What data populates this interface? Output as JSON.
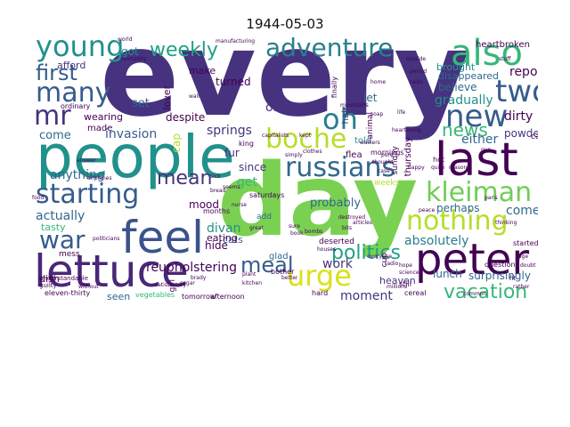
{
  "title": "1944-05-03",
  "words": {
    "every": "every",
    "day": "day",
    "people": "people",
    "lettuce": "lettuce",
    "feel": "feel",
    "peter": "peter",
    "last": "last",
    "also": "also",
    "young": "young",
    "adventure": "adventure",
    "russians": "russians",
    "boche": "boche",
    "kleiman": "kleiman",
    "starting": "starting",
    "nothing": "nothing",
    "new": "new",
    "two": "two",
    "many": "many",
    "first": "first",
    "weekly": "weekly",
    "mr": "mr",
    "oh": "oh",
    "war": "war",
    "urge": "urge",
    "meal": "meal",
    "politics": "politics",
    "vacation": "vacation",
    "news": "news",
    "mean": "mean",
    "anything": "anything",
    "actually": "actually",
    "invasion": "invasion",
    "springs": "springs",
    "office": "office",
    "report": "report",
    "gradually": "gradually",
    "believe": "believe",
    "dirty": "dirty",
    "either": "either",
    "absolutely": "absolutely",
    "comes": "comes",
    "probably": "probably",
    "work": "work",
    "moment": "moment",
    "divan": "divan",
    "reupholstering": "reupholstering",
    "morning": "morning",
    "perhaps": "perhaps",
    "lunch": "lunch",
    "surprisingly": "surprisingly",
    "heaven": "heaven",
    "powder": "powder",
    "heartbroken": "heartbroken",
    "brought": "brought",
    "disappeared": "disappeared",
    "turned": "turned",
    "got": "got",
    "afford": "afford",
    "set": "set",
    "come": "come",
    "cap": "cap",
    "lover": "lover",
    "make": "make",
    "despite": "despite",
    "wearing": "wearing",
    "made": "made",
    "hide": "hide",
    "mood": "mood",
    "get": "get",
    "since": "since",
    "fur": "fur",
    "cats": "cats",
    "eating": "eating",
    "tasty": "tasty",
    "dish": "dish",
    "seen": "seen",
    "vegetables": "vegetables",
    "tomorrow": "tomorrow",
    "afternoon": "afternoon",
    "eleven-thirty": "eleven-thirty",
    "hard": "hard",
    "cereal": "cereal",
    "still": "still",
    "glad": "glad",
    "let": "let",
    "hair": "hair",
    "told": "told",
    "flea": "flea",
    "thursday": "thursday",
    "sunday": "sunday",
    "cup": "cup",
    "ordinary": "ordinary",
    "saturdays": "saturdays",
    "mornings": "mornings",
    "hot": "hot",
    "weeks": "weeks",
    "months": "months",
    "bother": "bother",
    "king": "king",
    "add": "add",
    "already": "already",
    "question": "question",
    "started": "started",
    "finally": "finally",
    "deserted": "deserted",
    "cat": "cat",
    "animal": "animal",
    "girl": "girl",
    "mess": "mess",
    "guilty": "guilty",
    "understandable": "understandable",
    "world": "world",
    "manufacturing": "manufacturing",
    "humanity": "humanity",
    "outside": "outside",
    "stuff": "stuff",
    "period": "period",
    "wall": "wall",
    "gun": "gun",
    "soap": "soap",
    "case": "case",
    "simply": "simply",
    "clothes": "clothes",
    "walkers": "walkers",
    "thought": "thought",
    "sure": "sure",
    "book": "book",
    "airplanes": "airplanes",
    "sick": "sick",
    "bread": "bread",
    "food": "food",
    "without": "without",
    "satisfactory": "satisfactory",
    "science": "science",
    "millions": "millions",
    "better": "better",
    "radio": "radio",
    "hope": "hope",
    "one": "one",
    "age": "age",
    "doubt": "doubt",
    "sugar": "sugar",
    "seems": "seems",
    "bombs": "bombs",
    "houses": "houses",
    "bits": "bits",
    "quite": "quite",
    "reason": "reason",
    "brady": "brady",
    "politicians": "politicians",
    "great": "great",
    "plant": "plant",
    "kitchen": "kitchen",
    "capitalists": "capitalists",
    "destroyed": "destroyed",
    "articles": "articles",
    "everyone": "everyone",
    "mountains": "mountains",
    "heartening": "heartening",
    "common": "common",
    "fit": "fit",
    "life": "life",
    "home": "home",
    "raids": "raids",
    "pure": "pure",
    "kept": "kept",
    "happy": "happy",
    "paris": "paris",
    "thinking": "thinking",
    "rather": "rather",
    "nurse": "nurse",
    "answer": "answer",
    "peace": "peace"
  },
  "colors": {
    "dark_purple": "#46327e",
    "indigo": "#3b528b",
    "steel_blue": "#365c8d",
    "blue": "#31688e",
    "teal_blue": "#277f8e",
    "teal": "#21918c",
    "sea_green": "#1fa187",
    "green": "#35b779",
    "light_green": "#6ece58",
    "lime": "#7ad151",
    "yellow_green": "#b5de2b",
    "yellow": "#d8e219",
    "deep_purple": "#482878",
    "dark": "#440154"
  }
}
